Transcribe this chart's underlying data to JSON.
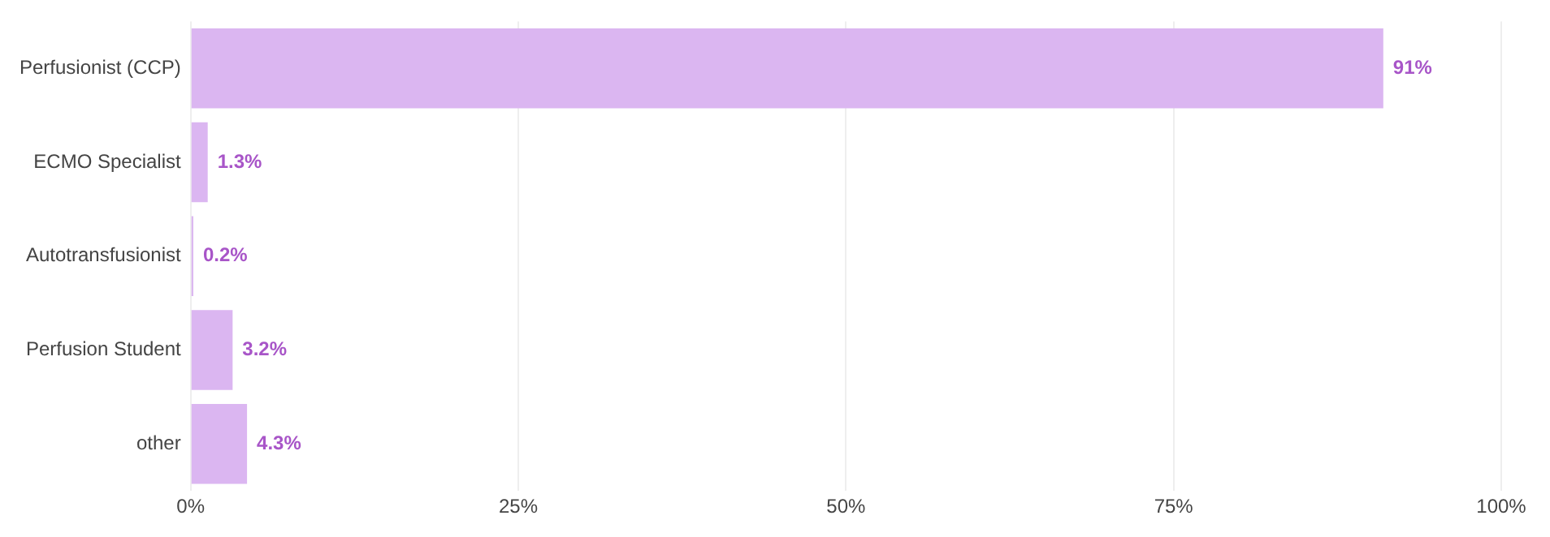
{
  "chart_data": {
    "type": "bar",
    "orientation": "horizontal",
    "categories": [
      "Perfusionist (CCP)",
      "ECMO Specialist",
      "Autotransfusionist",
      "Perfusion Student",
      "other"
    ],
    "values": [
      91,
      1.3,
      0.2,
      3.2,
      4.3
    ],
    "value_labels": [
      "91%",
      "1.3%",
      "0.2%",
      "3.2%",
      "4.3%"
    ],
    "color": "#dbb6f1",
    "xlim": [
      0,
      100
    ],
    "xticks": [
      {
        "value": 0,
        "label": "0%"
      },
      {
        "value": 25,
        "label": "25%"
      },
      {
        "value": 50,
        "label": "50%"
      },
      {
        "value": 75,
        "label": "75%"
      },
      {
        "value": 100,
        "label": "100%"
      }
    ],
    "grid": "x",
    "legend": false
  }
}
